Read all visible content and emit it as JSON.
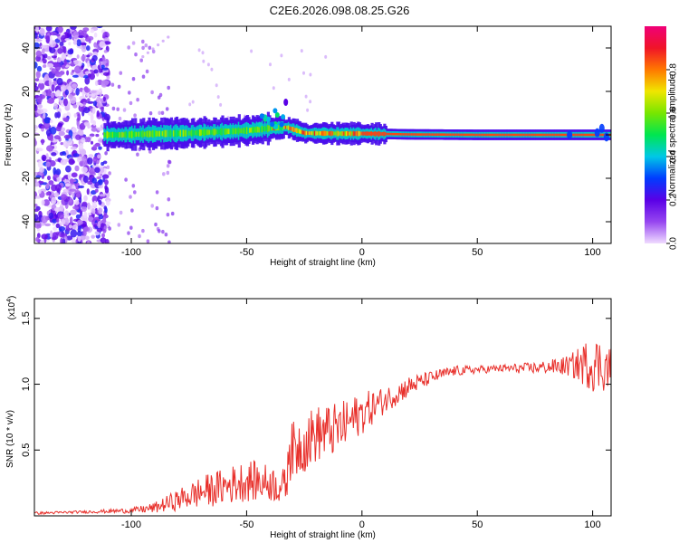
{
  "title": "C2E6.2026.098.08.25.G26",
  "chart_data": [
    {
      "type": "heatmap",
      "xlabel": "Height of straight line (km)",
      "ylabel": "Frequency (Hz)",
      "xlim": [
        -142,
        108
      ],
      "ylim": [
        -50,
        50
      ],
      "x_ticks": [
        -100,
        -50,
        0,
        50,
        100
      ],
      "y_ticks": [
        -40,
        -20,
        0,
        20,
        40
      ],
      "colorbar": {
        "label": "Normalized spectral amplitude",
        "range": [
          0,
          1
        ],
        "ticks": [
          0.0,
          0.2,
          0.4,
          0.6,
          0.8
        ]
      },
      "ridge": [
        {
          "x": -105,
          "y": 0.0
        },
        {
          "x": -90,
          "y": 0.5
        },
        {
          "x": -75,
          "y": 0.8
        },
        {
          "x": -60,
          "y": 1.5
        },
        {
          "x": -50,
          "y": 2.0
        },
        {
          "x": -40,
          "y": 3.0
        },
        {
          "x": -33,
          "y": 3.5
        },
        {
          "x": -25,
          "y": 0.8
        },
        {
          "x": -10,
          "y": 0.6
        },
        {
          "x": 0,
          "y": 0.6
        },
        {
          "x": 20,
          "y": 0.2
        },
        {
          "x": 50,
          "y": 0.0
        },
        {
          "x": 100,
          "y": 0.0
        },
        {
          "x": 108,
          "y": 0.0
        }
      ],
      "noise_region_x": [
        -142,
        -110
      ],
      "grid": false
    },
    {
      "type": "line",
      "xlabel": "Height of straight line (km)",
      "ylabel": "SNR (10 * v/v)",
      "y_multiplier_label": "(x10",
      "y_multiplier_exp": "4",
      "y_multiplier_close": ")",
      "xlim": [
        -142,
        108
      ],
      "ylim": [
        0,
        1.65
      ],
      "x_ticks": [
        -100,
        -50,
        0,
        50,
        100
      ],
      "y_ticks": [
        0.5,
        1.0,
        1.5
      ],
      "series": [
        {
          "color": "#e8302b",
          "envelope_x": [
            -142,
            -120,
            -100,
            -90,
            -80,
            -70,
            -60,
            -50,
            -40,
            -33,
            -32,
            -28,
            -20,
            -10,
            0,
            10,
            20,
            30,
            40,
            50,
            60,
            70,
            80,
            90,
            100,
            108
          ],
          "envelope_y": [
            0.02,
            0.03,
            0.04,
            0.06,
            0.12,
            0.18,
            0.22,
            0.27,
            0.25,
            0.22,
            0.45,
            0.52,
            0.62,
            0.66,
            0.78,
            0.88,
            0.98,
            1.05,
            1.1,
            1.11,
            1.12,
            1.12,
            1.13,
            1.14,
            1.16,
            1.12
          ],
          "noise_amplitude": [
            0.01,
            0.01,
            0.02,
            0.04,
            0.08,
            0.12,
            0.14,
            0.16,
            0.14,
            0.14,
            0.22,
            0.24,
            0.22,
            0.2,
            0.16,
            0.1,
            0.08,
            0.05,
            0.04,
            0.03,
            0.03,
            0.04,
            0.05,
            0.08,
            0.22,
            0.18
          ]
        }
      ],
      "grid": false
    }
  ]
}
